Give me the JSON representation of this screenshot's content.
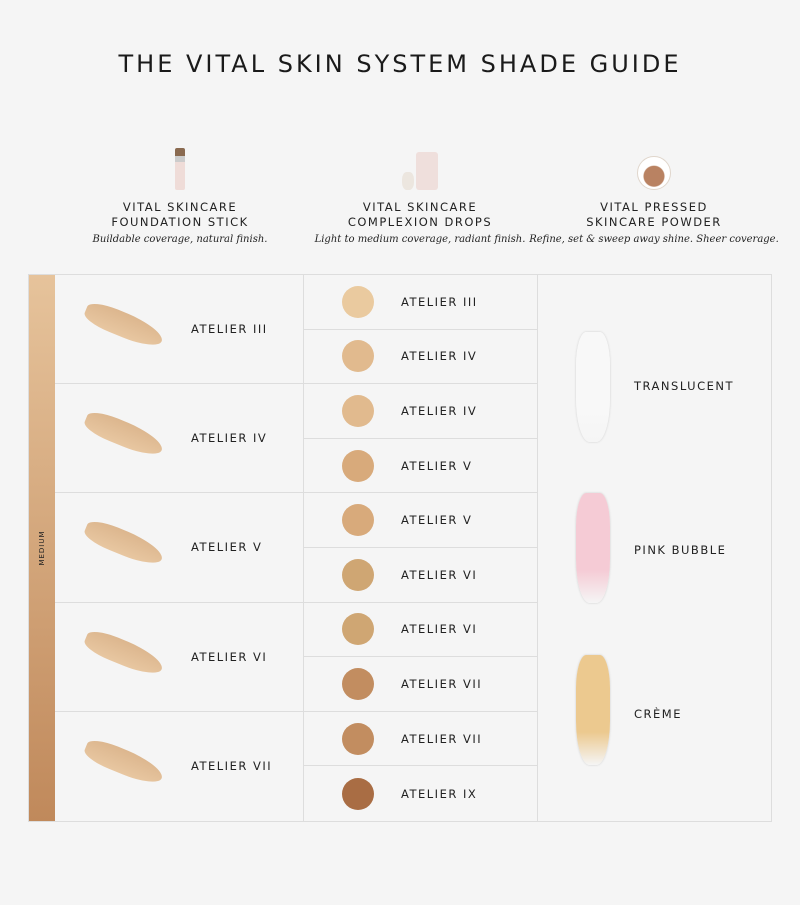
{
  "title": "THE VITAL SKIN SYSTEM SHADE GUIDE",
  "products": [
    {
      "name1": "VITAL SKINCARE",
      "name2": "FOUNDATION STICK",
      "desc": "Buildable coverage, natural finish.",
      "icon": "foundation-stick-icon"
    },
    {
      "name1": "VITAL SKINCARE",
      "name2": "COMPLEXION DROPS",
      "desc": "Light to medium coverage, radiant finish.",
      "icon": "dropper-bottle-icon"
    },
    {
      "name1": "VITAL PRESSED",
      "name2": "SKINCARE POWDER",
      "desc": "Refine, set & sweep away shine. Sheer coverage.",
      "icon": "compact-powder-icon"
    }
  ],
  "range_label": "MEDIUM",
  "stick": [
    "ATELIER III",
    "ATELIER IV",
    "ATELIER V",
    "ATELIER VI",
    "ATELIER VII"
  ],
  "drops": [
    {
      "label": "ATELIER III",
      "color": "#eaca9f"
    },
    {
      "label": "ATELIER IV",
      "color": "#e1ba8e"
    },
    {
      "label": "ATELIER IV",
      "color": "#e1ba8e"
    },
    {
      "label": "ATELIER V",
      "color": "#d8aa7b"
    },
    {
      "label": "ATELIER V",
      "color": "#d8aa7b"
    },
    {
      "label": "ATELIER VI",
      "color": "#cfa673"
    },
    {
      "label": "ATELIER VI",
      "color": "#cfa673"
    },
    {
      "label": "ATELIER VII",
      "color": "#c28d60"
    },
    {
      "label": "ATELIER VII",
      "color": "#c28d60"
    },
    {
      "label": "ATELIER IX",
      "color": "#a96d44"
    }
  ],
  "powders": [
    {
      "label": "TRANSLUCENT",
      "color": "#f8f8f8"
    },
    {
      "label": "PINK BUBBLE",
      "color": "#f5cbd5"
    },
    {
      "label": "CRÈME",
      "color": "#ecc98f"
    }
  ]
}
